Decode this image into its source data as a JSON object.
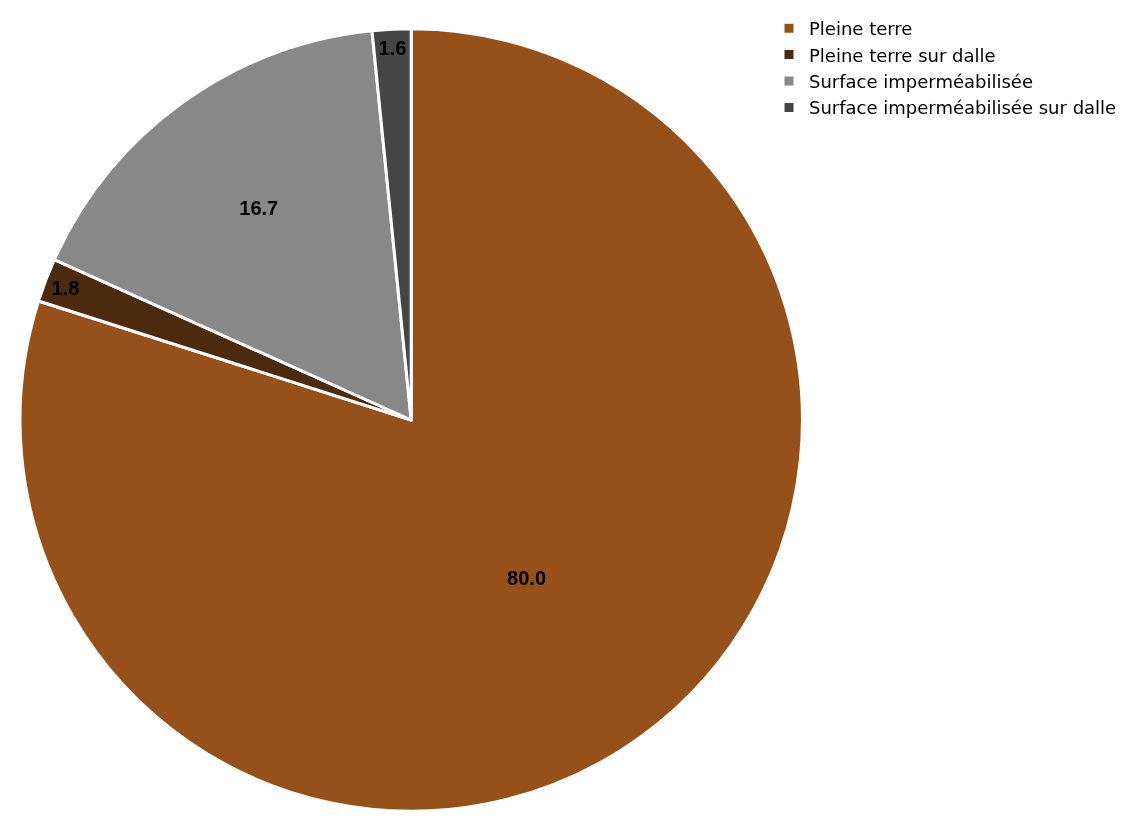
{
  "chart_data": {
    "type": "pie",
    "categories": [
      "Pleine terre",
      "Pleine terre sur dalle",
      "Surface imperméabilisée",
      "Surface imperméabilisée sur dalle"
    ],
    "values": [
      80.0,
      1.8,
      16.7,
      1.6
    ],
    "value_labels": [
      "80.0",
      "1.8",
      "16.7",
      "1.6"
    ],
    "colors": [
      "#955119",
      "#4b2a0d",
      "#888888",
      "#454545"
    ],
    "legend": "top right"
  }
}
